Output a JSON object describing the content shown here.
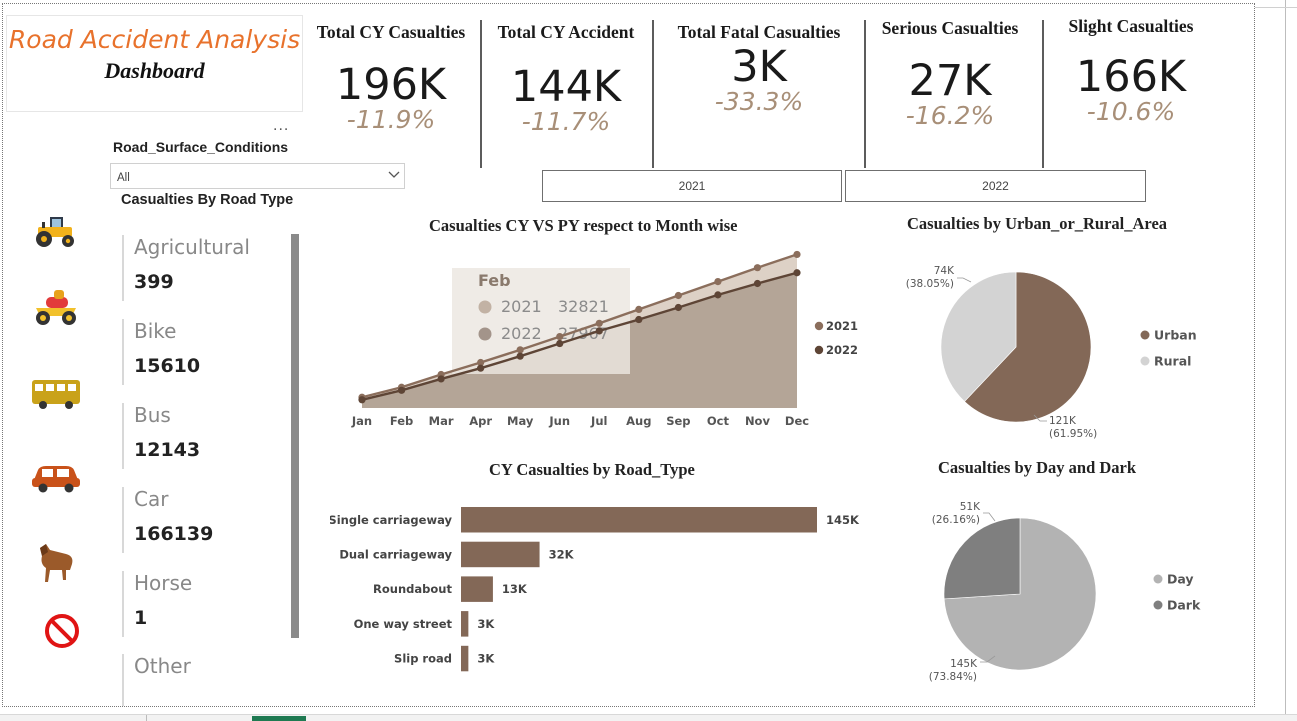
{
  "dashboard": {
    "title": "Road Accident Analysis",
    "subtitle": "Dashboard"
  },
  "kpis": [
    {
      "label": "Total CY Casualties",
      "value": "196K",
      "change": "-11.9%"
    },
    {
      "label": "Total CY Accident",
      "value": "144K",
      "change": "-11.7%"
    },
    {
      "label": "Total Fatal Casualties",
      "value": "3K",
      "change": "-33.3%"
    },
    {
      "label": "Serious Casualties",
      "value": "27K",
      "change": "-16.2%"
    },
    {
      "label": "Slight Casualties",
      "value": "166K",
      "change": "-10.6%"
    }
  ],
  "year_buttons": [
    "2021",
    "2022"
  ],
  "slicer": {
    "title": "Road_Surface_Conditions",
    "value": "All",
    "more": "..."
  },
  "vehicle_card": {
    "title": "Casualties By Road Type",
    "items": [
      {
        "label": "Agricultural",
        "value": "399",
        "icon": "tractor-icon"
      },
      {
        "label": "Bike",
        "value": "15610",
        "icon": "motorbike-icon"
      },
      {
        "label": "Bus",
        "value": "12143",
        "icon": "bus-icon"
      },
      {
        "label": "Car",
        "value": "166139",
        "icon": "car-icon"
      },
      {
        "label": "Horse",
        "value": "1",
        "icon": "horse-icon"
      },
      {
        "label": "Other",
        "value": "",
        "icon": "no-entry-icon"
      }
    ]
  },
  "colors": {
    "brown": "#836857",
    "brown_dark": "#5e4536",
    "cy_area": "#b4a597",
    "py_area": "#ddd1c6",
    "py_line": "#c9b9ab",
    "tooltip_bg": "#ece6e0",
    "rural": "#d3d3d3",
    "day": "#b3b3b3",
    "dark": "#7f7f7f",
    "kpi_change": "#a88f78",
    "title_orange": "#e8722c"
  },
  "chart_data": [
    {
      "type": "area",
      "title": "Casualties CY VS PY respect to Month wise",
      "categories": [
        "Jan",
        "Feb",
        "Mar",
        "Apr",
        "May",
        "Jun",
        "Jul",
        "Aug",
        "Sep",
        "Oct",
        "Nov",
        "Dec"
      ],
      "series": [
        {
          "name": "2021",
          "values": [
            17000,
            32821,
            53000,
            72000,
            92000,
            113000,
            134000,
            156000,
            178000,
            200000,
            222000,
            243000
          ]
        },
        {
          "name": "2022",
          "values": [
            13000,
            27967,
            46000,
            63000,
            82000,
            102000,
            122000,
            140000,
            159000,
            179000,
            197000,
            214000
          ]
        }
      ],
      "ylim": [
        0,
        250000
      ],
      "legend": "right",
      "tooltip": {
        "category": "Feb",
        "rows": [
          {
            "name": "2021",
            "value": "32821"
          },
          {
            "name": "2022",
            "value": "27967"
          }
        ]
      }
    },
    {
      "type": "bar",
      "orientation": "horizontal",
      "title": "CY Casualties by Road_Type",
      "categories": [
        "Single carriageway",
        "Dual carriageway",
        "Roundabout",
        "One way street",
        "Slip road"
      ],
      "values": [
        145000,
        32000,
        13000,
        3000,
        3000
      ],
      "labels": [
        "145K",
        "32K",
        "13K",
        "3K",
        "3K"
      ],
      "xlim": [
        0,
        145000
      ]
    },
    {
      "type": "pie",
      "title": "Casualties by Urban_or_Rural_Area",
      "slices": [
        {
          "name": "Urban",
          "value": 121000,
          "label": "121K",
          "pct": "(61.95%)"
        },
        {
          "name": "Rural",
          "value": 74000,
          "label": "74K",
          "pct": "(38.05%)"
        }
      ],
      "legend": "right"
    },
    {
      "type": "pie",
      "title": "Casualties by Day and Dark",
      "slices": [
        {
          "name": "Day",
          "value": 145000,
          "label": "145K",
          "pct": "(73.84%)"
        },
        {
          "name": "Dark",
          "value": 51000,
          "label": "51K",
          "pct": "(26.16%)"
        }
      ],
      "legend": "right"
    }
  ]
}
